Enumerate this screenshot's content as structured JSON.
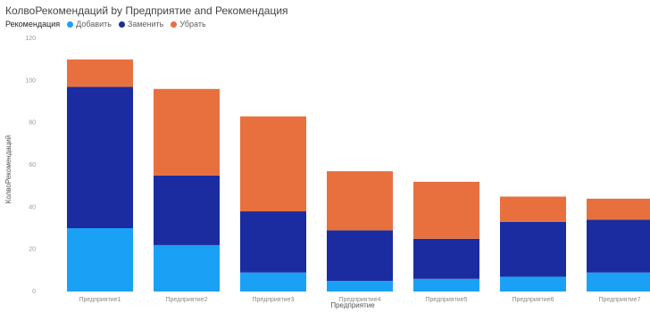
{
  "chart_data": {
    "type": "bar",
    "stacked": true,
    "title": "КолвоРекомендаций by Предприятие and Рекомендация",
    "xlabel": "Предприятие",
    "ylabel": "КолвоРекомендаций",
    "legend_title": "Рекомендация",
    "legend_position": "top-left",
    "grid": false,
    "ylim": [
      0,
      120
    ],
    "yticks": [
      "0",
      "20",
      "40",
      "60",
      "80",
      "100",
      "120"
    ],
    "categories": [
      "Предприятие1",
      "Предприятие2",
      "Предприятие3",
      "Предприятие4",
      "Предприятие5",
      "Предприятие6",
      "Предприятие7"
    ],
    "series": [
      {
        "name": "Добавить",
        "color": "#1AA1F5",
        "values": [
          30,
          22,
          9,
          5,
          6,
          7,
          9
        ]
      },
      {
        "name": "Заменить",
        "color": "#1A2CA0",
        "values": [
          67,
          33,
          29,
          24,
          19,
          26,
          25
        ]
      },
      {
        "name": "Убрать",
        "color": "#E8703F",
        "values": [
          13,
          41,
          45,
          28,
          27,
          12,
          10
        ]
      }
    ]
  }
}
